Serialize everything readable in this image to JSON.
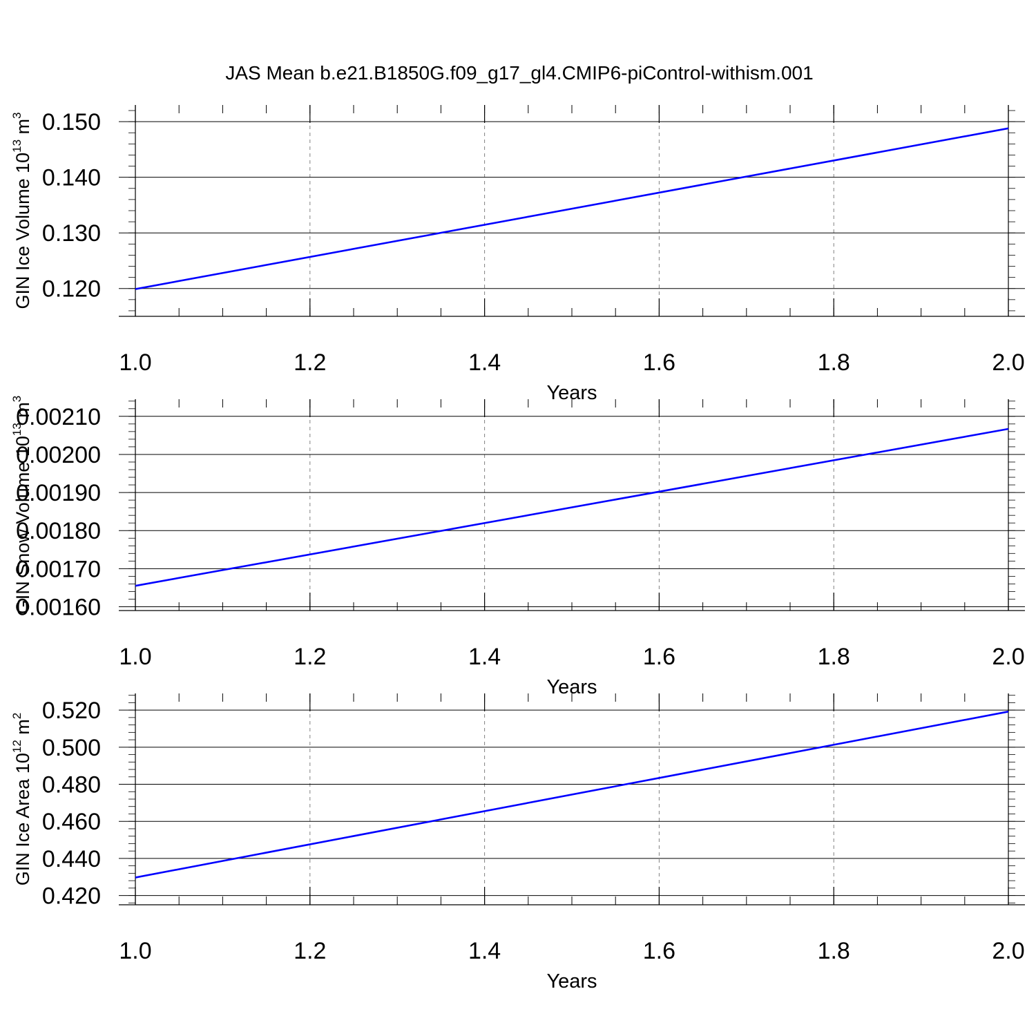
{
  "title": "JAS Mean b.e21.B1850G.f09_g17_gl4.CMIP6-piControl-withism.001",
  "colors": {
    "line": "#0000ff",
    "axis": "#000000",
    "grid": "#808080"
  },
  "chart_data": [
    {
      "type": "line",
      "xlabel": "Years",
      "ylabel": "GIN Ice Volume 10",
      "ylabel_exp": "13",
      "ylabel_unit": "m",
      "ylabel_unit_exp": "3",
      "xlim": [
        1.0,
        2.0
      ],
      "ylim": [
        0.115,
        0.153
      ],
      "xticks": [
        "1.0",
        "1.2",
        "1.4",
        "1.6",
        "1.8",
        "2.0"
      ],
      "xtick_values": [
        1.0,
        1.2,
        1.4,
        1.6,
        1.8,
        2.0
      ],
      "yticks": [
        "0.120",
        "0.130",
        "0.140",
        "0.150"
      ],
      "ytick_values": [
        0.12,
        0.13,
        0.14,
        0.15
      ],
      "grid": "x-dashed",
      "series": [
        {
          "x": [
            1.0,
            2.0
          ],
          "values": [
            0.1199,
            0.1488
          ]
        }
      ]
    },
    {
      "type": "line",
      "xlabel": "Years",
      "ylabel": "GIN Snow Volume 10",
      "ylabel_exp": "13",
      "ylabel_unit": "m",
      "ylabel_unit_exp": "3",
      "xlim": [
        1.0,
        2.0
      ],
      "ylim": [
        0.00159,
        0.002145
      ],
      "xticks": [
        "1.0",
        "1.2",
        "1.4",
        "1.6",
        "1.8",
        "2.0"
      ],
      "xtick_values": [
        1.0,
        1.2,
        1.4,
        1.6,
        1.8,
        2.0
      ],
      "yticks": [
        "0.00160",
        "0.00170",
        "0.00180",
        "0.00190",
        "0.00200",
        "0.00210"
      ],
      "ytick_values": [
        0.0016,
        0.0017,
        0.0018,
        0.0019,
        0.002,
        0.0021
      ],
      "grid": "x-dashed",
      "series": [
        {
          "x": [
            1.0,
            2.0
          ],
          "values": [
            0.001655,
            0.002067
          ]
        }
      ]
    },
    {
      "type": "line",
      "xlabel": "Years",
      "ylabel": "GIN Ice Area 10",
      "ylabel_exp": "12",
      "ylabel_unit": "m",
      "ylabel_unit_exp": "2",
      "xlim": [
        1.0,
        2.0
      ],
      "ylim": [
        0.415,
        0.529
      ],
      "xticks": [
        "1.0",
        "1.2",
        "1.4",
        "1.6",
        "1.8",
        "2.0"
      ],
      "xtick_values": [
        1.0,
        1.2,
        1.4,
        1.6,
        1.8,
        2.0
      ],
      "yticks": [
        "0.420",
        "0.440",
        "0.460",
        "0.480",
        "0.500",
        "0.520"
      ],
      "ytick_values": [
        0.42,
        0.44,
        0.46,
        0.48,
        0.5,
        0.52
      ],
      "grid": "x-dashed",
      "series": [
        {
          "x": [
            1.0,
            2.0
          ],
          "values": [
            0.4297,
            0.5192
          ]
        }
      ]
    }
  ]
}
